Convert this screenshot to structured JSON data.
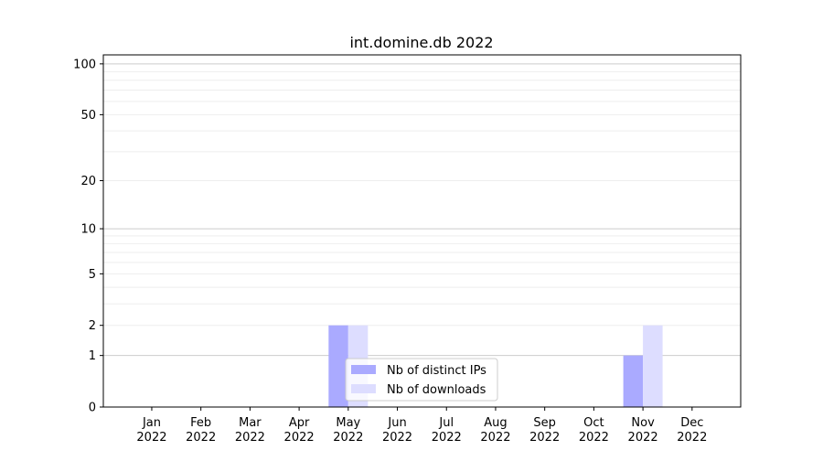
{
  "chart_data": {
    "type": "bar",
    "title": "int.domine.db 2022",
    "xlabel": "",
    "ylabel": "",
    "y_scale": "log(1+y)",
    "ylim": [
      0,
      113
    ],
    "yticks": [
      0,
      1,
      2,
      5,
      10,
      20,
      50,
      100
    ],
    "grid": true,
    "legend_position": "lower-center",
    "categories": [
      "Jan\n2022",
      "Feb\n2022",
      "Mar\n2022",
      "Apr\n2022",
      "May\n2022",
      "Jun\n2022",
      "Jul\n2022",
      "Aug\n2022",
      "Sep\n2022",
      "Oct\n2022",
      "Nov\n2022",
      "Dec\n2022"
    ],
    "series": [
      {
        "name": "Nb of distinct IPs",
        "color": "#aaaaff",
        "values": [
          0,
          0,
          0,
          0,
          2,
          0,
          0,
          0,
          0,
          0,
          1,
          0
        ]
      },
      {
        "name": "Nb of downloads",
        "color": "#ddddff",
        "values": [
          0,
          0,
          0,
          0,
          2,
          0,
          0,
          0,
          0,
          0,
          2,
          0
        ]
      }
    ]
  }
}
